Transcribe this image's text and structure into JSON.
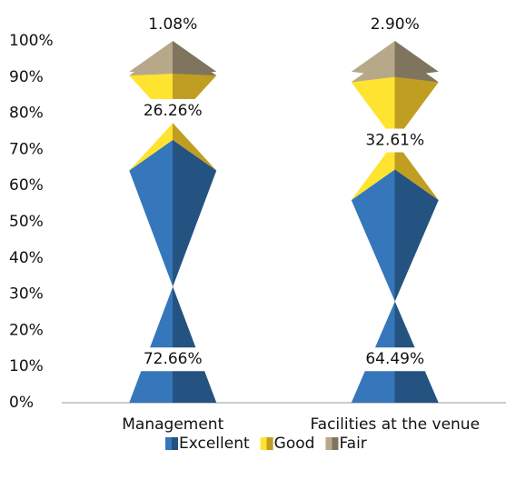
{
  "chart_data": {
    "type": "bar",
    "stacked": true,
    "categories": [
      "Management",
      "Facilities at the venue"
    ],
    "series": [
      {
        "name": "Excellent",
        "color": "#2f6aa6",
        "values": [
          72.66,
          64.49
        ],
        "value_labels": [
          "72.66%",
          "64.49%"
        ]
      },
      {
        "name": "Good",
        "color": "#f6cb2c",
        "values": [
          26.26,
          32.61
        ],
        "value_labels": [
          "26.26%",
          "32.61%"
        ]
      },
      {
        "name": "Fair",
        "color": "#a3967a",
        "values": [
          1.08,
          2.9
        ],
        "value_labels": [
          "1.08%",
          "2.90%"
        ]
      }
    ],
    "ylim": [
      0,
      100
    ],
    "yticks": [
      {
        "value": 0,
        "label": "0%"
      },
      {
        "value": 10,
        "label": "10%"
      },
      {
        "value": 20,
        "label": "20%"
      },
      {
        "value": 30,
        "label": "30%"
      },
      {
        "value": 40,
        "label": "40%"
      },
      {
        "value": 50,
        "label": "50%"
      },
      {
        "value": 60,
        "label": "60%"
      },
      {
        "value": 70,
        "label": "70%"
      },
      {
        "value": 80,
        "label": "80%"
      },
      {
        "value": 90,
        "label": "90%"
      },
      {
        "value": 100,
        "label": "100%"
      }
    ],
    "grid": false,
    "legend": "bottom"
  }
}
